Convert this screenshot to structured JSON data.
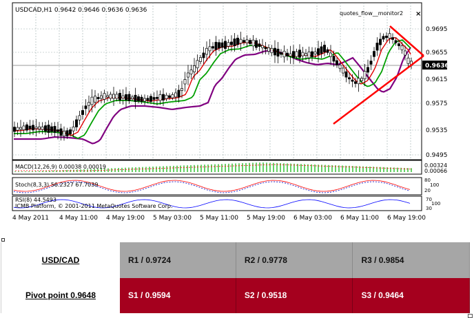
{
  "chart": {
    "header": "USDCAD,H1  0.9642 0.9646 0.9636 0.9636",
    "indicator_name": "quotes_flow__monitor2",
    "close_symbol": "×",
    "price_ticks": [
      "0.9695",
      "0.9655",
      "0.9615",
      "0.9575",
      "0.9535",
      "0.9495"
    ],
    "current_price": "0.9636",
    "time_labels": [
      "4 May 2011",
      "4 May 11:00",
      "4 May 19:00",
      "5 May 03:00",
      "5 May 11:00",
      "5 May 19:00",
      "6 May 03:00",
      "6 May 11:00",
      "6 May 19:00"
    ],
    "macd_label": "MACD(12,26,9) 0.00038 0.00019",
    "macd_ticks": [
      "0.00324",
      "0.00066"
    ],
    "stoch_label": "Stoch(8,3,3) 56.2327 67.7039",
    "stoch_ticks": [
      "80",
      "100",
      "20"
    ],
    "rsi_label": "RSI(8) 44.5493",
    "rsi_ticks": [
      "70",
      "100",
      "30"
    ],
    "copyright": "ICMB Platform, © 2001-2011 MetaQuotes Software Corp.",
    "colors": {
      "ma_fast": "#e00000",
      "ma_mid": "#00a000",
      "ma_slow": "#800080",
      "trendline": "#ff0000",
      "candle": "#000000",
      "macd_hist": "#00b000",
      "macd_signal": "#ff0000"
    }
  },
  "pivot_table": {
    "pair": "USD/CAD",
    "pivot": "Pivot point 0.9648",
    "resistance": [
      "R1 / 0.9724",
      "R2 / 0.9778",
      "R3 / 0.9854"
    ],
    "support": [
      "S1 / 0.9594",
      "S2 / 0.9518",
      "S3 / 0.9464"
    ],
    "colors": {
      "resistance_bg": "#a6a6a6",
      "support_bg": "#a5001e"
    }
  }
}
